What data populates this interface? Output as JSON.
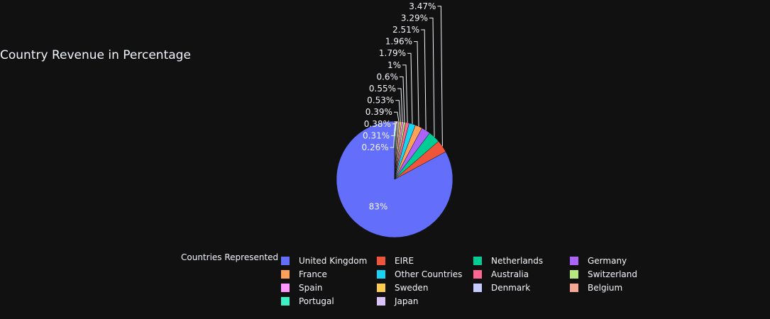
{
  "chart_data": {
    "type": "pie",
    "title": "Country Revenue in Percentage",
    "legend_title": "Countries Represented",
    "legend_position": "bottom",
    "slices": [
      {
        "label": "United Kingdom",
        "value": 82.62,
        "text": "83%",
        "color": "#636efa"
      },
      {
        "label": "EIRE",
        "value": 3.47,
        "text": "3.47%",
        "color": "#ef553b"
      },
      {
        "label": "Netherlands",
        "value": 3.29,
        "text": "3.29%",
        "color": "#00cc96"
      },
      {
        "label": "Germany",
        "value": 2.51,
        "text": "2.51%",
        "color": "#ab63fa"
      },
      {
        "label": "France",
        "value": 1.96,
        "text": "1.96%",
        "color": "#ffa15a"
      },
      {
        "label": "Other Countries",
        "value": 1.79,
        "text": "1.79%",
        "color": "#19d3f3"
      },
      {
        "label": "Australia",
        "value": 1.0,
        "text": "1%",
        "color": "#ff6692"
      },
      {
        "label": "Switzerland",
        "value": 0.6,
        "text": "0.6%",
        "color": "#b6e880"
      },
      {
        "label": "Spain",
        "value": 0.55,
        "text": "0.55%",
        "color": "#ff97ff"
      },
      {
        "label": "Sweden",
        "value": 0.53,
        "text": "0.53%",
        "color": "#fecb52"
      },
      {
        "label": "Denmark",
        "value": 0.39,
        "text": "0.39%",
        "color": "#c6ccff"
      },
      {
        "label": "Belgium",
        "value": 0.38,
        "text": "0.38%",
        "color": "#f4a795"
      },
      {
        "label": "Portugal",
        "value": 0.31,
        "text": "0.31%",
        "color": "#3ef0c3"
      },
      {
        "label": "Japan",
        "value": 0.26,
        "text": "0.26%",
        "color": "#dcc2fa"
      }
    ]
  }
}
